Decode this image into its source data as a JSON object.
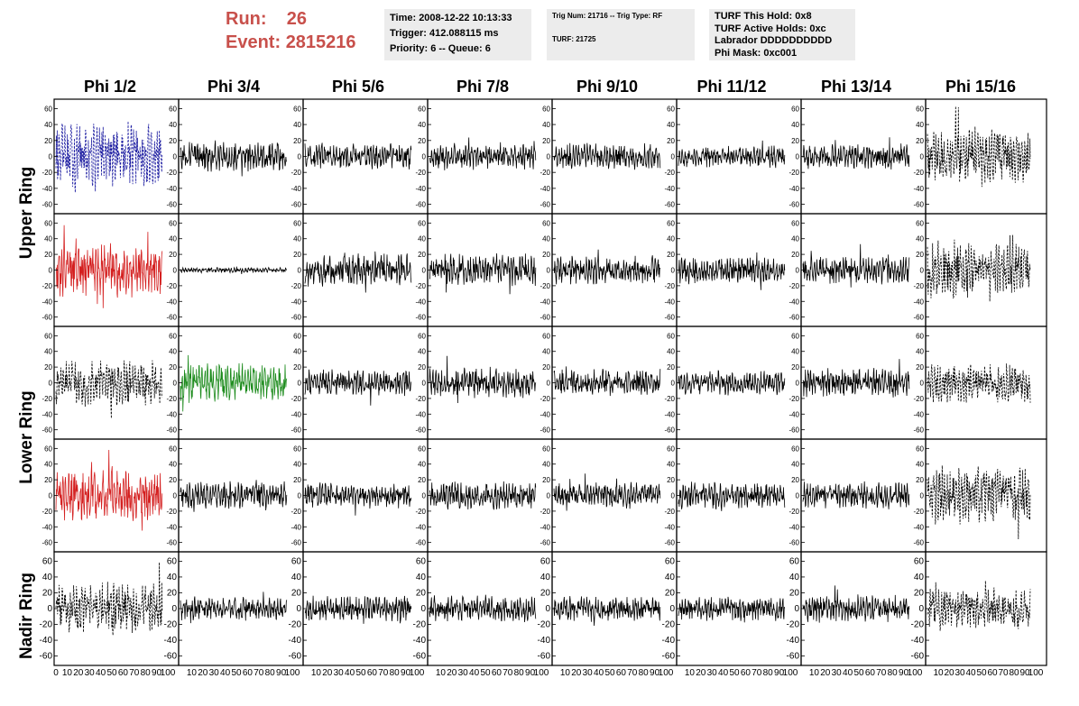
{
  "header": {
    "run_label": "Run:",
    "run_value": "26",
    "event_label": "Event:",
    "event_value": "2815216",
    "time": "Time: 2008-12-22 10:13:33",
    "trigger": "Trigger: 412.088115 ms",
    "priority": "Priority: 6 -- Queue: 6",
    "trig_num": "Trig Num: 21716 -- Trig Type: RF",
    "turf": "TURF: 21725",
    "turf_this_hold": "TURF This Hold: 0x8",
    "turf_active_holds": "TURF Active Holds: 0xc",
    "labrador": "Labrador DDDDDDDDDD",
    "phi_mask": "Phi Mask: 0xc001"
  },
  "columns": [
    "Phi 1/2",
    "Phi 3/4",
    "Phi 5/6",
    "Phi 7/8",
    "Phi 9/10",
    "Phi 11/12",
    "Phi 13/14",
    "Phi 15/16"
  ],
  "rings": [
    "Upper Ring",
    "Lower Ring",
    "Nadir Ring"
  ],
  "y_ticks": [
    "60",
    "40",
    "20",
    "0",
    "-20",
    "-40",
    "-60"
  ],
  "x_ticks_first": [
    "0",
    "10",
    "20",
    "30",
    "40",
    "50",
    "60",
    "70",
    "80",
    "90",
    "100"
  ],
  "x_ticks_other": [
    "10",
    "20",
    "30",
    "40",
    "50",
    "60",
    "70",
    "80",
    "90",
    "100"
  ],
  "colors": {
    "run_text": "#c8504b",
    "blue": "#1a1aa0",
    "red": "#d42020",
    "green": "#1a8a1a",
    "black": "#000000",
    "info_bg": "#ececec"
  },
  "chart_data": {
    "type": "line",
    "xlim": [
      0,
      100
    ],
    "ylim": [
      -65,
      65
    ],
    "panels": [
      {
        "row": 0,
        "col": 0,
        "style": "dashed",
        "color": "blue",
        "amp": 38
      },
      {
        "row": 0,
        "col": 1,
        "style": "solid",
        "color": "black",
        "amp": 16
      },
      {
        "row": 0,
        "col": 2,
        "style": "solid",
        "color": "black",
        "amp": 14
      },
      {
        "row": 0,
        "col": 3,
        "style": "solid",
        "color": "black",
        "amp": 15
      },
      {
        "row": 0,
        "col": 4,
        "style": "solid",
        "color": "black",
        "amp": 14
      },
      {
        "row": 0,
        "col": 5,
        "style": "solid",
        "color": "black",
        "amp": 12
      },
      {
        "row": 0,
        "col": 6,
        "style": "solid",
        "color": "black",
        "amp": 14
      },
      {
        "row": 0,
        "col": 7,
        "style": "dashed",
        "color": "black",
        "amp": 32
      },
      {
        "row": 1,
        "col": 0,
        "style": "solid",
        "color": "red",
        "amp": 30
      },
      {
        "row": 1,
        "col": 1,
        "style": "solid",
        "color": "black",
        "amp": 3
      },
      {
        "row": 1,
        "col": 2,
        "style": "solid",
        "color": "black",
        "amp": 18
      },
      {
        "row": 1,
        "col": 3,
        "style": "solid",
        "color": "black",
        "amp": 18
      },
      {
        "row": 1,
        "col": 4,
        "style": "solid",
        "color": "black",
        "amp": 16
      },
      {
        "row": 1,
        "col": 5,
        "style": "solid",
        "color": "black",
        "amp": 15
      },
      {
        "row": 1,
        "col": 6,
        "style": "solid",
        "color": "black",
        "amp": 16
      },
      {
        "row": 1,
        "col": 7,
        "style": "dashed",
        "color": "black",
        "amp": 32
      },
      {
        "row": 2,
        "col": 0,
        "style": "dashed",
        "color": "black",
        "amp": 26
      },
      {
        "row": 2,
        "col": 1,
        "style": "solid",
        "color": "green",
        "amp": 22
      },
      {
        "row": 2,
        "col": 2,
        "style": "solid",
        "color": "black",
        "amp": 15
      },
      {
        "row": 2,
        "col": 3,
        "style": "solid",
        "color": "black",
        "amp": 17
      },
      {
        "row": 2,
        "col": 4,
        "style": "solid",
        "color": "black",
        "amp": 15
      },
      {
        "row": 2,
        "col": 5,
        "style": "solid",
        "color": "black",
        "amp": 14
      },
      {
        "row": 2,
        "col": 6,
        "style": "solid",
        "color": "black",
        "amp": 16
      },
      {
        "row": 2,
        "col": 7,
        "style": "dashed",
        "color": "black",
        "amp": 22
      },
      {
        "row": 3,
        "col": 0,
        "style": "solid",
        "color": "red",
        "amp": 28
      },
      {
        "row": 3,
        "col": 1,
        "style": "solid",
        "color": "black",
        "amp": 16
      },
      {
        "row": 3,
        "col": 2,
        "style": "solid",
        "color": "black",
        "amp": 14
      },
      {
        "row": 3,
        "col": 3,
        "style": "solid",
        "color": "black",
        "amp": 16
      },
      {
        "row": 3,
        "col": 4,
        "style": "solid",
        "color": "black",
        "amp": 14
      },
      {
        "row": 3,
        "col": 5,
        "style": "solid",
        "color": "black",
        "amp": 15
      },
      {
        "row": 3,
        "col": 6,
        "style": "solid",
        "color": "black",
        "amp": 15
      },
      {
        "row": 3,
        "col": 7,
        "style": "dashed",
        "color": "black",
        "amp": 32
      },
      {
        "row": 4,
        "col": 0,
        "style": "dashed",
        "color": "black",
        "amp": 28
      },
      {
        "row": 4,
        "col": 1,
        "style": "solid",
        "color": "black",
        "amp": 13
      },
      {
        "row": 4,
        "col": 2,
        "style": "solid",
        "color": "black",
        "amp": 14
      },
      {
        "row": 4,
        "col": 3,
        "style": "solid",
        "color": "black",
        "amp": 15
      },
      {
        "row": 4,
        "col": 4,
        "style": "solid",
        "color": "black",
        "amp": 14
      },
      {
        "row": 4,
        "col": 5,
        "style": "solid",
        "color": "black",
        "amp": 14
      },
      {
        "row": 4,
        "col": 6,
        "style": "solid",
        "color": "black",
        "amp": 15
      },
      {
        "row": 4,
        "col": 7,
        "style": "dashed",
        "color": "black",
        "amp": 24
      }
    ]
  }
}
